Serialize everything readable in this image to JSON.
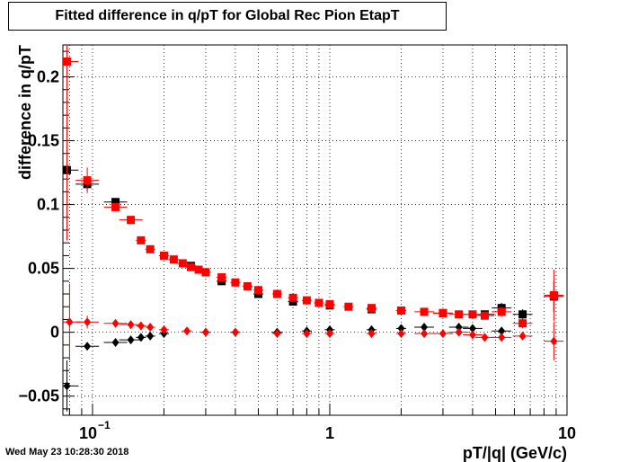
{
  "title": "Fitted difference in q/pT for Global Rec Pion EtapT",
  "timestamp": "Wed May 23 10:28:30 2018",
  "chart_data": {
    "type": "scatter",
    "title": "Fitted difference in q/pT for Global Rec Pion EtapT",
    "xlabel": "pT/|q| (GeV/c)",
    "ylabel": "difference in q/pT",
    "xscale": "log",
    "xlim": [
      0.075,
      10
    ],
    "ylim": [
      -0.065,
      0.225
    ],
    "grid": true,
    "x_ticks": [
      {
        "value": 0.1,
        "base": "10",
        "exp": "−1"
      },
      {
        "value": 1,
        "label": "1"
      },
      {
        "value": 10,
        "label": "10"
      }
    ],
    "y_ticks": [
      {
        "value": -0.05,
        "label": "−0.05"
      },
      {
        "value": 0,
        "label": "0"
      },
      {
        "value": 0.05,
        "label": "0.05"
      },
      {
        "value": 0.1,
        "label": "0.1"
      },
      {
        "value": 0.15,
        "label": "0.15"
      },
      {
        "value": 0.2,
        "label": "0.2"
      }
    ],
    "series": [
      {
        "marker": "square",
        "color": "#000000",
        "points": [
          [
            0.078,
            0.127,
            0.02
          ],
          [
            0.095,
            0.116,
            0.005
          ],
          [
            0.125,
            0.102,
            0.003
          ],
          [
            0.26,
            0.052,
            0.002
          ],
          [
            0.35,
            0.04,
            0.002
          ],
          [
            0.5,
            0.03,
            0.002
          ],
          [
            0.7,
            0.024,
            0.001
          ],
          [
            1.0,
            0.021,
            0.001
          ],
          [
            1.5,
            0.018,
            0.001
          ],
          [
            2.0,
            0.017,
            0.001
          ],
          [
            3.0,
            0.015,
            0.002
          ],
          [
            4.5,
            0.014,
            0.002
          ],
          [
            5.3,
            0.019,
            0.004
          ],
          [
            6.5,
            0.014,
            0.004
          ],
          [
            8.8,
            0.028,
            0.012
          ]
        ]
      },
      {
        "marker": "square",
        "color": "#ff0000",
        "points": [
          [
            0.078,
            0.212,
            0.14
          ],
          [
            0.095,
            0.119,
            0.01
          ],
          [
            0.125,
            0.098,
            0.003
          ],
          [
            0.145,
            0.088,
            0.002
          ],
          [
            0.16,
            0.072,
            0.002
          ],
          [
            0.175,
            0.065,
            0.002
          ],
          [
            0.2,
            0.06,
            0.002
          ],
          [
            0.22,
            0.057,
            0.002
          ],
          [
            0.24,
            0.054,
            0.002
          ],
          [
            0.26,
            0.051,
            0.002
          ],
          [
            0.28,
            0.049,
            0.002
          ],
          [
            0.3,
            0.047,
            0.002
          ],
          [
            0.35,
            0.043,
            0.002
          ],
          [
            0.4,
            0.039,
            0.002
          ],
          [
            0.45,
            0.036,
            0.002
          ],
          [
            0.5,
            0.033,
            0.002
          ],
          [
            0.6,
            0.03,
            0.001
          ],
          [
            0.7,
            0.027,
            0.001
          ],
          [
            0.8,
            0.025,
            0.001
          ],
          [
            0.9,
            0.023,
            0.001
          ],
          [
            1.0,
            0.022,
            0.001
          ],
          [
            1.2,
            0.02,
            0.001
          ],
          [
            1.5,
            0.019,
            0.001
          ],
          [
            2.0,
            0.017,
            0.001
          ],
          [
            2.5,
            0.016,
            0.001
          ],
          [
            3.0,
            0.015,
            0.002
          ],
          [
            3.5,
            0.014,
            0.002
          ],
          [
            4.0,
            0.014,
            0.002
          ],
          [
            4.5,
            0.013,
            0.002
          ],
          [
            5.3,
            0.016,
            0.004
          ],
          [
            6.5,
            0.007,
            0.004
          ],
          [
            8.8,
            0.029,
            0.02
          ]
        ]
      },
      {
        "marker": "diamond",
        "color": "#000000",
        "points": [
          [
            0.078,
            -0.042,
            0.02
          ],
          [
            0.095,
            -0.011,
            0.003
          ],
          [
            0.125,
            -0.008,
            0.002
          ],
          [
            0.145,
            -0.006,
            0.002
          ],
          [
            0.16,
            -0.004,
            0.002
          ],
          [
            0.175,
            -0.003,
            0.002
          ],
          [
            0.2,
            -0.001,
            0.001
          ],
          [
            0.3,
            0.0,
            0.001
          ],
          [
            0.4,
            0.0,
            0.001
          ],
          [
            0.6,
            0.0,
            0.001
          ],
          [
            0.8,
            0.001,
            0.001
          ],
          [
            1.0,
            0.002,
            0.001
          ],
          [
            1.5,
            0.002,
            0.001
          ],
          [
            2.0,
            0.003,
            0.001
          ],
          [
            2.5,
            0.004,
            0.001
          ],
          [
            3.5,
            0.004,
            0.002
          ],
          [
            4.0,
            0.003,
            0.002
          ],
          [
            5.3,
            0.001,
            0.003
          ]
        ]
      },
      {
        "marker": "diamond",
        "color": "#ff0000",
        "points": [
          [
            0.08,
            0.008,
            0.03
          ],
          [
            0.095,
            0.008,
            0.005
          ],
          [
            0.125,
            0.007,
            0.002
          ],
          [
            0.145,
            0.006,
            0.002
          ],
          [
            0.16,
            0.005,
            0.002
          ],
          [
            0.175,
            0.004,
            0.002
          ],
          [
            0.2,
            0.002,
            0.001
          ],
          [
            0.25,
            0.001,
            0.001
          ],
          [
            0.3,
            0.0,
            0.001
          ],
          [
            0.4,
            0.0,
            0.001
          ],
          [
            0.6,
            -0.001,
            0.001
          ],
          [
            0.8,
            -0.001,
            0.001
          ],
          [
            1.0,
            -0.001,
            0.001
          ],
          [
            1.5,
            -0.001,
            0.001
          ],
          [
            2.0,
            -0.001,
            0.001
          ],
          [
            2.5,
            -0.001,
            0.001
          ],
          [
            3.0,
            -0.001,
            0.001
          ],
          [
            3.5,
            0.0,
            0.002
          ],
          [
            4.0,
            -0.002,
            0.002
          ],
          [
            4.5,
            -0.004,
            0.002
          ],
          [
            5.3,
            -0.004,
            0.003
          ],
          [
            6.5,
            -0.003,
            0.003
          ],
          [
            8.8,
            -0.007,
            0.015
          ]
        ]
      }
    ]
  }
}
